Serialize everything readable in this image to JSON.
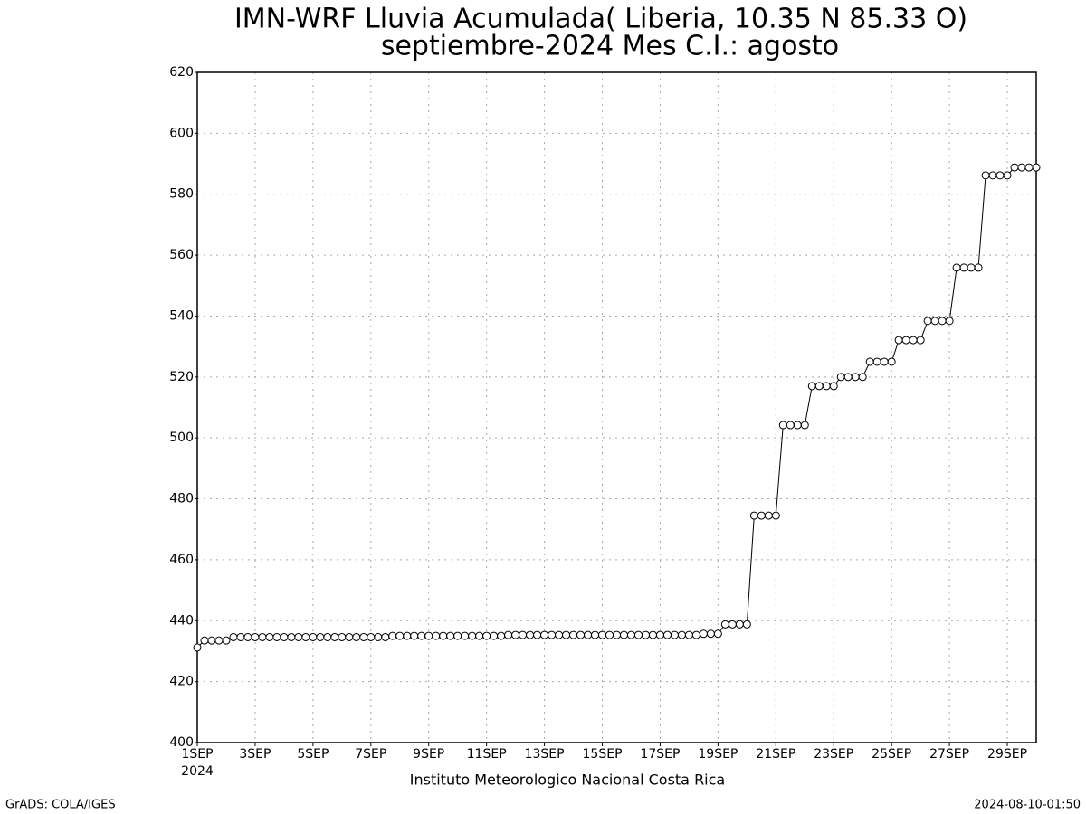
{
  "chart_data": {
    "type": "line",
    "title": "IMN-WRF  Lluvia Acumulada( Liberia, 10.35  N 85.33  O)",
    "subtitle": "septiembre-2024 Mes C.I.: agosto",
    "x_sublabel": "2024",
    "footer": "Instituto Meteorologico Nacional Costa Rica",
    "credit": "GrADS: COLA/IGES",
    "timestamp": "2024-08-10-01:50",
    "color": "#000000",
    "grid": true,
    "x": [
      0,
      0.25,
      0.5,
      0.75,
      1,
      1.25,
      1.5,
      1.75,
      2,
      2.25,
      2.5,
      2.75,
      3,
      3.25,
      3.5,
      3.75,
      4,
      4.25,
      4.5,
      4.75,
      5,
      5.25,
      5.5,
      5.75,
      6,
      6.25,
      6.5,
      6.75,
      7,
      7.25,
      7.5,
      7.75,
      8,
      8.25,
      8.5,
      8.75,
      9,
      9.25,
      9.5,
      9.75,
      10,
      10.25,
      10.5,
      10.75,
      11,
      11.25,
      11.5,
      11.75,
      12,
      12.25,
      12.5,
      12.75,
      13,
      13.25,
      13.5,
      13.75,
      14,
      14.25,
      14.5,
      14.75,
      15,
      15.25,
      15.5,
      15.75,
      16,
      16.25,
      16.5,
      16.75,
      17,
      17.25,
      17.5,
      17.75,
      18,
      18.25,
      18.5,
      18.75,
      19,
      19.25,
      19.5,
      19.75,
      20,
      20.25,
      20.5,
      20.75,
      21,
      21.25,
      21.5,
      21.75,
      22,
      22.25,
      22.5,
      22.75,
      23,
      23.25,
      23.5,
      23.75,
      24,
      24.25,
      24.5,
      24.75,
      25,
      25.25,
      25.5,
      25.75,
      26,
      26.25,
      26.5,
      26.75,
      27,
      27.25,
      27.5,
      27.75,
      28,
      28.25,
      28.5,
      28.75,
      29
    ],
    "values": [
      431.2,
      433.5,
      433.5,
      433.5,
      433.5,
      434.6,
      434.6,
      434.6,
      434.6,
      434.6,
      434.6,
      434.6,
      434.6,
      434.6,
      434.6,
      434.6,
      434.6,
      434.6,
      434.6,
      434.6,
      434.6,
      434.6,
      434.6,
      434.6,
      434.6,
      434.6,
      434.6,
      435.0,
      435.0,
      435.0,
      435.0,
      435.0,
      435.0,
      435.0,
      435.0,
      435.0,
      435.0,
      435.0,
      435.0,
      435.0,
      435.0,
      435.0,
      435.0,
      435.3,
      435.3,
      435.3,
      435.3,
      435.3,
      435.3,
      435.3,
      435.3,
      435.3,
      435.3,
      435.3,
      435.3,
      435.3,
      435.3,
      435.3,
      435.3,
      435.3,
      435.3,
      435.3,
      435.3,
      435.3,
      435.3,
      435.3,
      435.3,
      435.3,
      435.3,
      435.3,
      435.7,
      435.7,
      435.7,
      438.8,
      438.8,
      438.8,
      438.8,
      474.5,
      474.5,
      474.5,
      474.5,
      504.2,
      504.2,
      504.2,
      504.2,
      517.0,
      517.0,
      517.0,
      517.0,
      520.0,
      520.0,
      520.0,
      520.0,
      525.0,
      525.0,
      525.0,
      525.0,
      532.1,
      532.1,
      532.1,
      532.1,
      538.4,
      538.4,
      538.4,
      538.4,
      555.9,
      555.9,
      555.9,
      555.9,
      586.2,
      586.2,
      586.2,
      586.2,
      588.8,
      588.8,
      588.8,
      588.8
    ],
    "xlim": [
      0,
      29
    ],
    "xticks": [
      {
        "value": 0,
        "label": "1SEP"
      },
      {
        "value": 2,
        "label": "3SEP"
      },
      {
        "value": 4,
        "label": "5SEP"
      },
      {
        "value": 6,
        "label": "7SEP"
      },
      {
        "value": 8,
        "label": "9SEP"
      },
      {
        "value": 10,
        "label": "11SEP"
      },
      {
        "value": 12,
        "label": "13SEP"
      },
      {
        "value": 14,
        "label": "15SEP"
      },
      {
        "value": 16,
        "label": "17SEP"
      },
      {
        "value": 18,
        "label": "19SEP"
      },
      {
        "value": 20,
        "label": "21SEP"
      },
      {
        "value": 22,
        "label": "23SEP"
      },
      {
        "value": 24,
        "label": "25SEP"
      },
      {
        "value": 26,
        "label": "27SEP"
      },
      {
        "value": 28,
        "label": "29SEP"
      }
    ],
    "ylim": [
      400,
      620
    ],
    "yticks": [
      400,
      420,
      440,
      460,
      480,
      500,
      520,
      540,
      560,
      580,
      600,
      620
    ]
  }
}
